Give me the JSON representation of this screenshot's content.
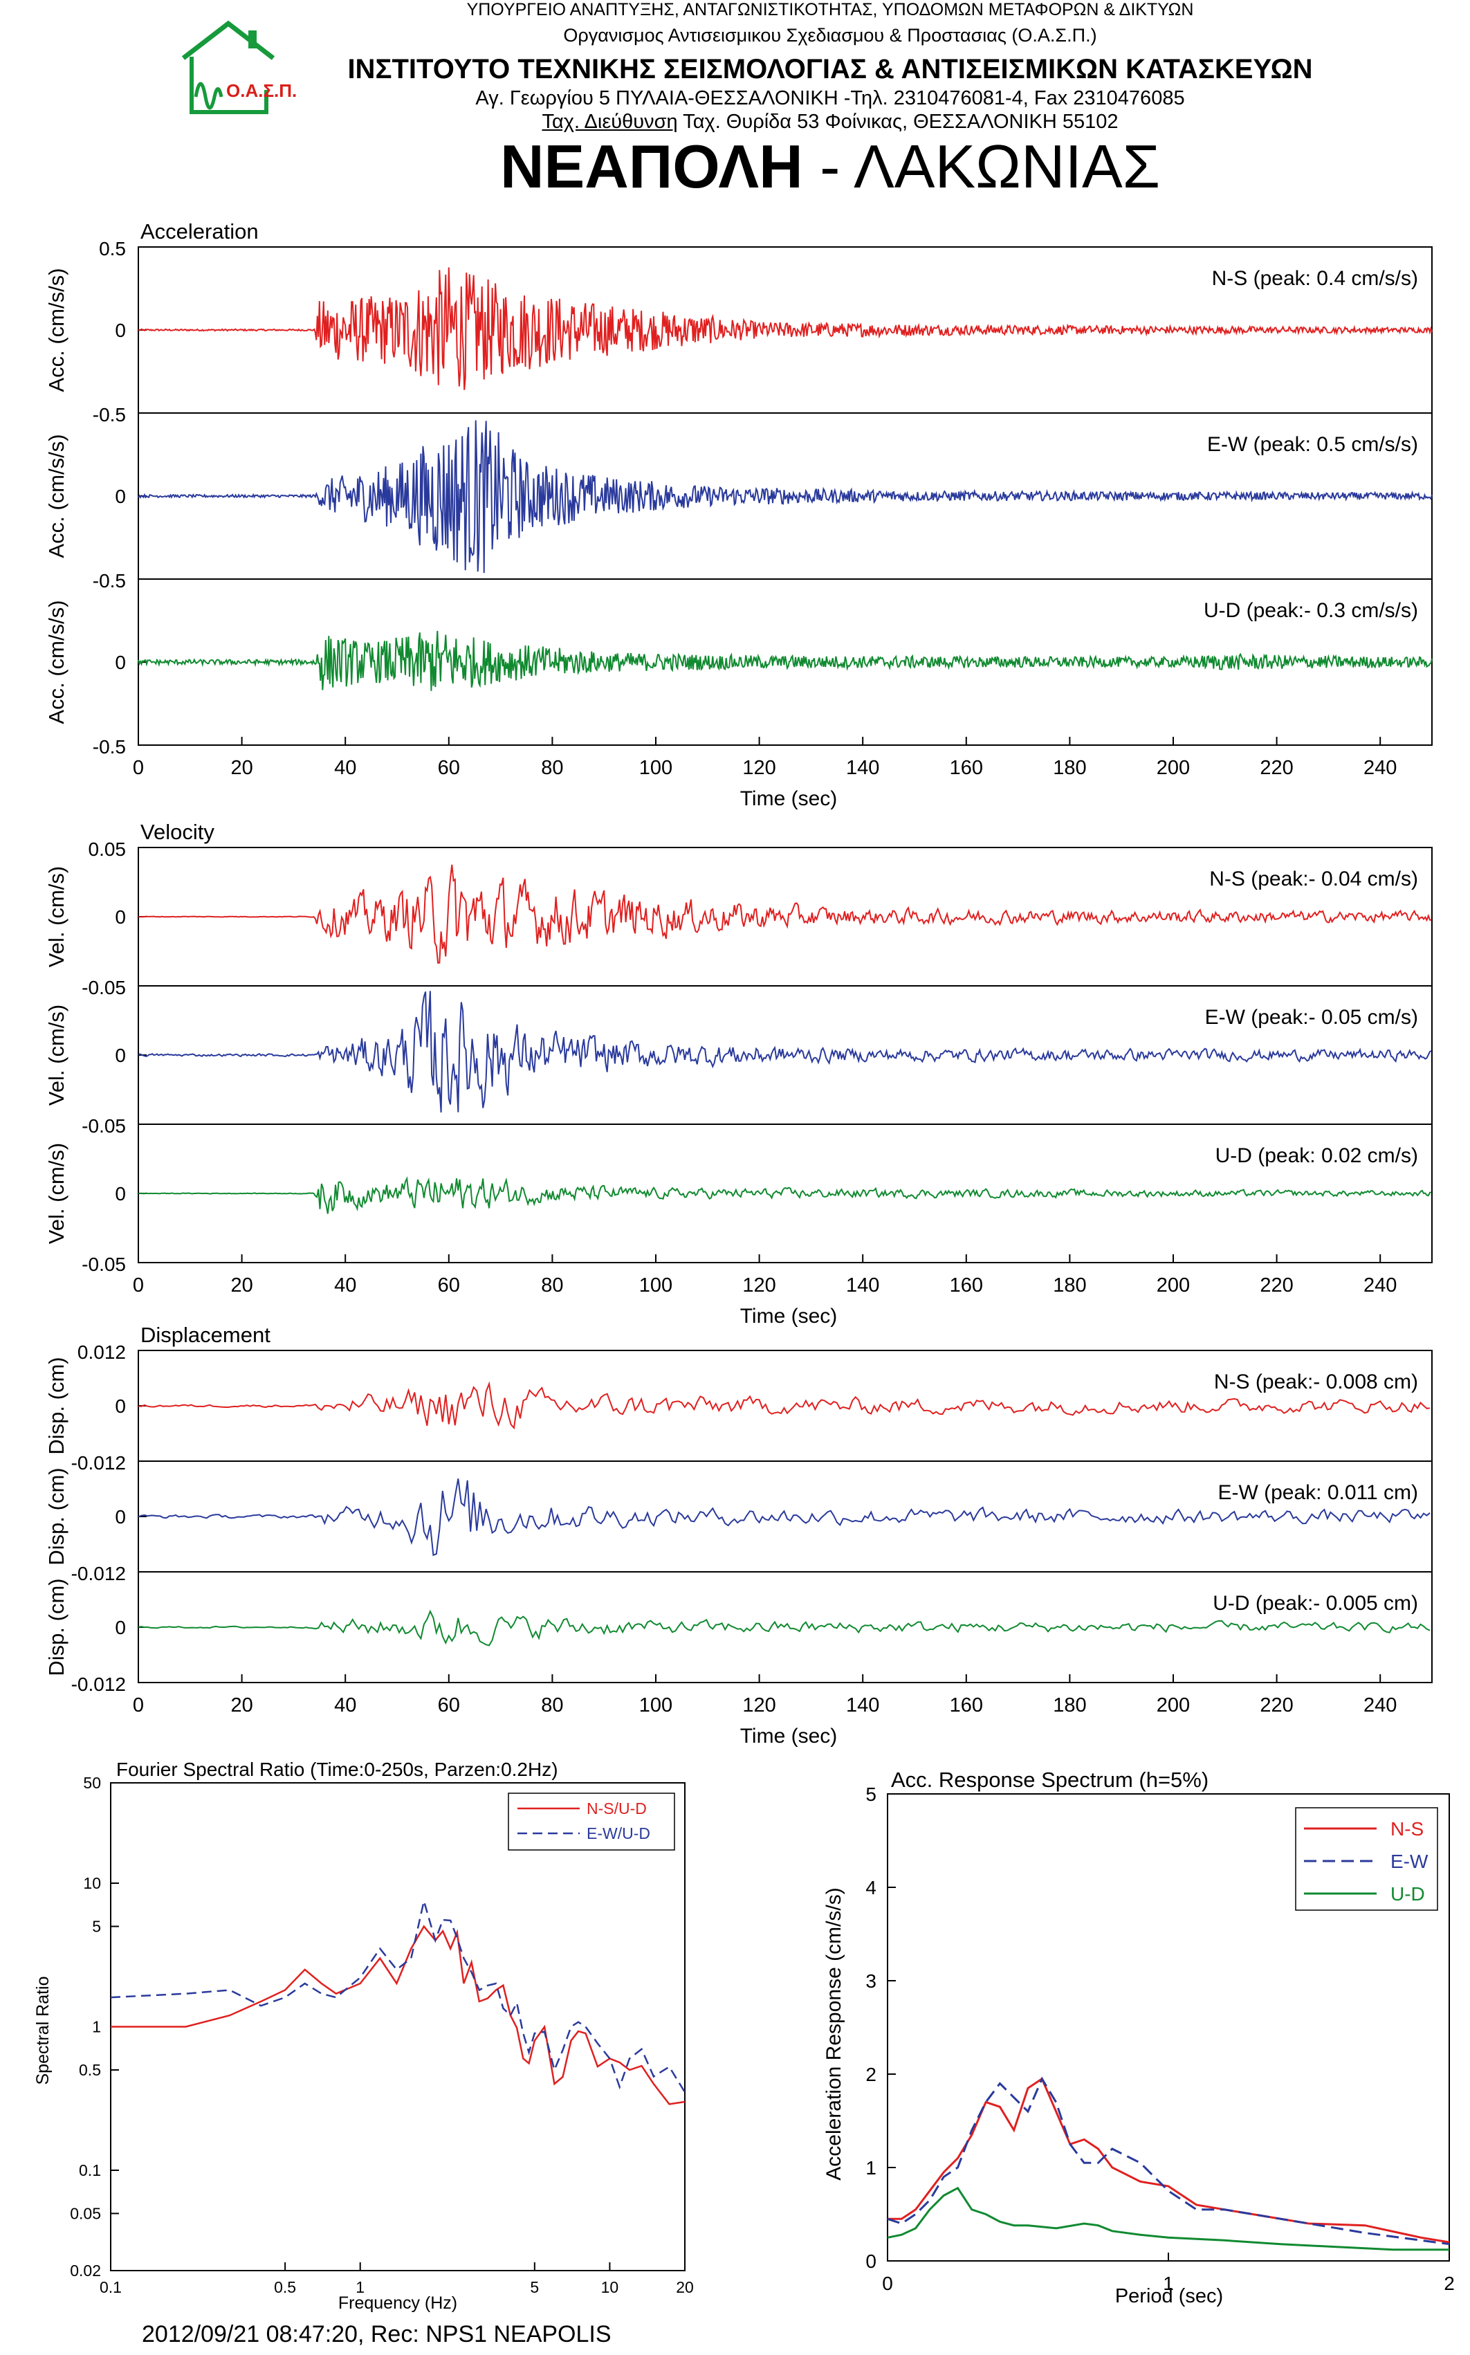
{
  "header": {
    "ministry": "ΥΠΟΥΡΓΕΙΟ ΑΝΑΠΤΥΞΗΣ, ΑΝΤΑΓΩΝΙΣΤΙΚΟΤΗΤΑΣ, ΥΠΟΔΟΜΩΝ ΜΕΤΑΦΟΡΩΝ & ΔΙΚΤΥΩΝ",
    "organization": "Οργανισμος Αντισεισμικου Σχεδιασμου & Προστασιας (Ο.Α.Σ.Π.)",
    "institute": "ΙΝΣΤΙΤΟΥΤΟ ΤΕΧΝΙΚΗΣ ΣΕΙΣΜΟΛΟΓΙΑΣ & ΑΝΤΙΣΕΙΣΜΙΚΩΝ ΚΑΤΑΣΚΕΥΩΝ",
    "address_line1": "Αγ. Γεωργίου 5 ΠΥΛΑΙΑ-ΘΕΣΣΑΛΟΝΙΚΗ -Τηλ. 2310476081-4, Fax 2310476085",
    "address_line2_underlined": "Ταχ. Διεύθυνση",
    "address_line2_rest": " Ταχ. Θυρίδα 53 Φοίνικας, ΘΕΣΣΑΛΟΝΙΚΗ 55102",
    "logo_text": "Ο.Α.Σ.Π.",
    "station_bold": "ΝΕΑΠΟΛΗ",
    "station_rest": " - ΛΑΚΩΝΙΑΣ"
  },
  "colors": {
    "ns": "#e02020",
    "ew": "#2a3a9c",
    "ud": "#108a30",
    "logo_green": "#169a3c",
    "logo_red": "#d8201a"
  },
  "chart_data": [
    {
      "type": "line",
      "title": "Acceleration",
      "xlabel": "Time (sec)",
      "ylabel": "Acc. (cm/s/s)",
      "xlim": [
        0,
        250
      ],
      "ylim": [
        -0.5,
        0.5
      ],
      "xticks": [
        "0",
        "20",
        "40",
        "60",
        "80",
        "100",
        "120",
        "140",
        "160",
        "180",
        "200",
        "220",
        "240"
      ],
      "yticks": [
        "0.5",
        "0",
        "-0.5"
      ],
      "series": [
        {
          "name": "N-S (peak: 0.4 cm/s/s)",
          "color": "#e02020",
          "peak": 0.4,
          "onset_sec": 34,
          "envelope": [
            [
              0,
              0.005
            ],
            [
              34,
              0.005
            ],
            [
              35,
              0.18
            ],
            [
              50,
              0.22
            ],
            [
              60,
              0.4
            ],
            [
              70,
              0.28
            ],
            [
              85,
              0.18
            ],
            [
              100,
              0.12
            ],
            [
              120,
              0.05
            ],
            [
              160,
              0.03
            ],
            [
              220,
              0.02
            ],
            [
              250,
              0.015
            ]
          ]
        },
        {
          "name": "E-W (peak: 0.5 cm/s/s)",
          "color": "#2a3a9c",
          "peak": 0.5,
          "onset_sec": 34,
          "envelope": [
            [
              0,
              0.008
            ],
            [
              34,
              0.008
            ],
            [
              36,
              0.1
            ],
            [
              50,
              0.2
            ],
            [
              58,
              0.38
            ],
            [
              66,
              0.5
            ],
            [
              75,
              0.22
            ],
            [
              90,
              0.12
            ],
            [
              110,
              0.06
            ],
            [
              150,
              0.03
            ],
            [
              250,
              0.02
            ]
          ]
        },
        {
          "name": "U-D (peak:- 0.3 cm/s/s)",
          "color": "#108a30",
          "peak": 0.3,
          "onset_sec": 34,
          "envelope": [
            [
              0,
              0.015
            ],
            [
              34,
              0.015
            ],
            [
              35,
              0.18
            ],
            [
              45,
              0.12
            ],
            [
              58,
              0.2
            ],
            [
              70,
              0.12
            ],
            [
              90,
              0.06
            ],
            [
              120,
              0.04
            ],
            [
              200,
              0.03
            ],
            [
              210,
              0.05
            ],
            [
              225,
              0.04
            ],
            [
              250,
              0.03
            ]
          ]
        }
      ]
    },
    {
      "type": "line",
      "title": "Velocity",
      "xlabel": "Time (sec)",
      "ylabel": "Vel. (cm/s)",
      "xlim": [
        0,
        250
      ],
      "ylim": [
        -0.05,
        0.05
      ],
      "xticks": [
        "0",
        "20",
        "40",
        "60",
        "80",
        "100",
        "120",
        "140",
        "160",
        "180",
        "200",
        "220",
        "240"
      ],
      "yticks": [
        "0.05",
        "0",
        "-0.05"
      ],
      "series": [
        {
          "name": "N-S (peak:- 0.04 cm/s)",
          "color": "#e02020",
          "peak": 0.04,
          "onset_sec": 34,
          "envelope": [
            [
              0,
              0.0003
            ],
            [
              34,
              0.0003
            ],
            [
              35,
              0.014
            ],
            [
              50,
              0.02
            ],
            [
              60,
              0.038
            ],
            [
              72,
              0.026
            ],
            [
              90,
              0.02
            ],
            [
              110,
              0.012
            ],
            [
              140,
              0.006
            ],
            [
              250,
              0.004
            ]
          ]
        },
        {
          "name": "E-W (peak:- 0.05 cm/s)",
          "color": "#2a3a9c",
          "peak": 0.05,
          "onset_sec": 34,
          "envelope": [
            [
              0,
              0.001
            ],
            [
              34,
              0.001
            ],
            [
              36,
              0.008
            ],
            [
              50,
              0.02
            ],
            [
              56,
              0.05
            ],
            [
              65,
              0.045
            ],
            [
              75,
              0.02
            ],
            [
              100,
              0.01
            ],
            [
              140,
              0.005
            ],
            [
              250,
              0.004
            ]
          ]
        },
        {
          "name": "U-D (peak: 0.02 cm/s)",
          "color": "#108a30",
          "peak": 0.02,
          "onset_sec": 34,
          "envelope": [
            [
              0,
              0.0003
            ],
            [
              34,
              0.0003
            ],
            [
              35,
              0.018
            ],
            [
              45,
              0.008
            ],
            [
              60,
              0.016
            ],
            [
              75,
              0.008
            ],
            [
              100,
              0.004
            ],
            [
              250,
              0.002
            ]
          ]
        }
      ]
    },
    {
      "type": "line",
      "title": "Displacement",
      "xlabel": "Time (sec)",
      "ylabel": "Disp. (cm)",
      "xlim": [
        0,
        250
      ],
      "ylim": [
        -0.012,
        0.012
      ],
      "xticks": [
        "0",
        "20",
        "40",
        "60",
        "80",
        "100",
        "120",
        "140",
        "160",
        "180",
        "200",
        "220",
        "240"
      ],
      "yticks": [
        "0.012",
        "0",
        "-0.012"
      ],
      "series": [
        {
          "name": "N-S (peak:- 0.008 cm)",
          "color": "#e02020",
          "peak": 0.008,
          "onset_sec": 34,
          "envelope": [
            [
              0,
              0.0003
            ],
            [
              34,
              0.0003
            ],
            [
              36,
              0.002
            ],
            [
              50,
              0.003
            ],
            [
              60,
              0.007
            ],
            [
              68,
              0.006
            ],
            [
              80,
              0.003
            ],
            [
              120,
              0.002
            ],
            [
              250,
              0.0015
            ]
          ]
        },
        {
          "name": "E-W (peak: 0.011 cm)",
          "color": "#2a3a9c",
          "peak": 0.011,
          "onset_sec": 34,
          "envelope": [
            [
              0,
              0.0004
            ],
            [
              34,
              0.0004
            ],
            [
              36,
              0.002
            ],
            [
              50,
              0.003
            ],
            [
              57,
              0.011
            ],
            [
              64,
              0.01
            ],
            [
              72,
              0.004
            ],
            [
              100,
              0.002
            ],
            [
              250,
              0.0015
            ]
          ]
        },
        {
          "name": "U-D (peak:- 0.005 cm)",
          "color": "#108a30",
          "peak": 0.005,
          "onset_sec": 34,
          "envelope": [
            [
              0,
              0.0002
            ],
            [
              34,
              0.0002
            ],
            [
              36,
              0.002
            ],
            [
              50,
              0.002
            ],
            [
              60,
              0.005
            ],
            [
              70,
              0.003
            ],
            [
              100,
              0.0015
            ],
            [
              250,
              0.001
            ]
          ]
        }
      ]
    },
    {
      "type": "line",
      "title": "Fourier Spectral Ratio (Time:0-250s, Parzen:0.2Hz)",
      "xlabel": "Frequency (Hz)",
      "ylabel": "Spectral Ratio",
      "log_x": true,
      "log_y": true,
      "xlim": [
        0.1,
        20
      ],
      "ylim": [
        0.02,
        50
      ],
      "xticks": [
        "0.1",
        "0.5",
        "1",
        "5",
        "10",
        "20"
      ],
      "yticks": [
        "50",
        "10",
        "5",
        "1",
        "0.5",
        "0.1",
        "0.05",
        "0.02"
      ],
      "legend": "top-right",
      "series": [
        {
          "name": "N-S/U-D",
          "color": "#e02020",
          "dash": false,
          "x": [
            0.1,
            0.2,
            0.3,
            0.4,
            0.5,
            0.6,
            0.7,
            0.8,
            1.0,
            1.2,
            1.4,
            1.6,
            1.8,
            2.0,
            2.3,
            2.6,
            3.0,
            3.5,
            4.0,
            4.5,
            5.0,
            6.0,
            7.0,
            8.0,
            10,
            12,
            15,
            20
          ],
          "y": [
            1.0,
            1.0,
            1.2,
            1.5,
            1.8,
            2.5,
            2.0,
            1.7,
            2.0,
            3.0,
            2.0,
            3.5,
            5.0,
            4.0,
            3.5,
            2.0,
            1.5,
            1.8,
            1.2,
            0.6,
            0.8,
            0.4,
            0.8,
            0.9,
            0.6,
            0.5,
            0.4,
            0.3
          ]
        },
        {
          "name": "E-W/U-D",
          "color": "#2a3a9c",
          "dash": true,
          "x": [
            0.1,
            0.2,
            0.3,
            0.4,
            0.5,
            0.6,
            0.7,
            0.8,
            1.0,
            1.2,
            1.4,
            1.6,
            1.8,
            2.0,
            2.3,
            2.6,
            3.0,
            3.5,
            4.0,
            4.5,
            5.0,
            6.0,
            7.0,
            8.0,
            10,
            12,
            15,
            20
          ],
          "y": [
            1.6,
            1.7,
            1.8,
            1.4,
            1.6,
            2.0,
            1.7,
            1.6,
            2.2,
            3.5,
            2.5,
            3.0,
            7.5,
            4.0,
            5.5,
            3.0,
            1.8,
            2.0,
            1.2,
            0.9,
            0.9,
            0.5,
            1.0,
            1.0,
            0.6,
            0.6,
            0.45,
            0.35
          ]
        }
      ]
    },
    {
      "type": "line",
      "title": "Acc. Response Spectrum (h=5%)",
      "xlabel": "Period (sec)",
      "ylabel": "Acceleration Response (cm/s/s)",
      "xlim": [
        0,
        2
      ],
      "ylim": [
        0,
        5
      ],
      "xticks": [
        "0",
        "1",
        "2"
      ],
      "yticks": [
        "0",
        "1",
        "2",
        "3",
        "4",
        "5"
      ],
      "legend": "top-right",
      "series": [
        {
          "name": "N-S",
          "color": "#e02020",
          "dash": false,
          "x": [
            0,
            0.05,
            0.1,
            0.15,
            0.2,
            0.25,
            0.3,
            0.35,
            0.4,
            0.45,
            0.5,
            0.55,
            0.6,
            0.65,
            0.7,
            0.75,
            0.8,
            0.9,
            1.0,
            1.1,
            1.2,
            1.3,
            1.5,
            1.7,
            1.9,
            2.0
          ],
          "y": [
            0.45,
            0.45,
            0.55,
            0.75,
            0.95,
            1.1,
            1.35,
            1.7,
            1.65,
            1.4,
            1.85,
            1.95,
            1.6,
            1.25,
            1.3,
            1.2,
            1.0,
            0.85,
            0.8,
            0.6,
            0.55,
            0.5,
            0.4,
            0.38,
            0.25,
            0.2
          ]
        },
        {
          "name": "E-W",
          "color": "#2a3a9c",
          "dash": true,
          "x": [
            0,
            0.05,
            0.1,
            0.15,
            0.2,
            0.25,
            0.3,
            0.35,
            0.4,
            0.45,
            0.5,
            0.55,
            0.6,
            0.65,
            0.7,
            0.75,
            0.8,
            0.9,
            1.0,
            1.1,
            1.2,
            1.3,
            1.5,
            1.7,
            1.9,
            2.0
          ],
          "y": [
            0.45,
            0.4,
            0.5,
            0.65,
            0.9,
            1.0,
            1.4,
            1.7,
            1.9,
            1.75,
            1.6,
            1.95,
            1.7,
            1.25,
            1.05,
            1.05,
            1.2,
            1.05,
            0.75,
            0.55,
            0.55,
            0.5,
            0.4,
            0.3,
            0.22,
            0.18
          ]
        },
        {
          "name": "U-D",
          "color": "#108a30",
          "dash": false,
          "x": [
            0,
            0.05,
            0.1,
            0.15,
            0.2,
            0.25,
            0.3,
            0.35,
            0.4,
            0.45,
            0.5,
            0.6,
            0.7,
            0.75,
            0.8,
            0.9,
            1.0,
            1.2,
            1.4,
            1.6,
            1.8,
            2.0
          ],
          "y": [
            0.25,
            0.28,
            0.35,
            0.55,
            0.7,
            0.78,
            0.55,
            0.5,
            0.42,
            0.38,
            0.38,
            0.35,
            0.4,
            0.38,
            0.32,
            0.28,
            0.25,
            0.22,
            0.18,
            0.15,
            0.12,
            0.12
          ]
        }
      ]
    }
  ],
  "footer": {
    "record": "2012/09/21 08:47:20, Rec: NPS1 NEAPOLIS"
  }
}
